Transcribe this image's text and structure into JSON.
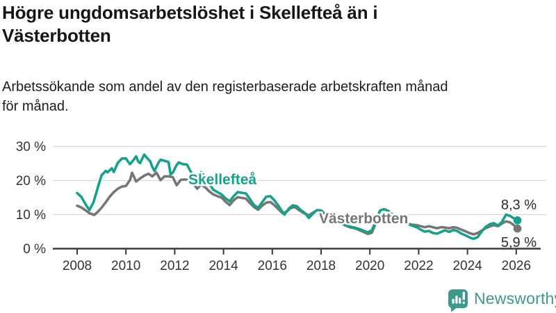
{
  "header": {
    "title_line1": "Högre ungdomsarbetslöshet i Skellefteå än i",
    "title_line2": "Västerbotten",
    "subtitle_line1": "Arbetssökande som andel av den registerbaserade arbetskraften månad",
    "subtitle_line2": "för månad."
  },
  "branding": {
    "name": "Newsworthy",
    "logo_icon": "bar-chart-exclamation-speech-bubble"
  },
  "colors": {
    "skelleftea": "#16a18b",
    "vasterbotten": "#767676",
    "axis": "#3b3b3b",
    "grid": "#dadada",
    "tick_label": "#333333",
    "value_label": "#2b2b2b",
    "brand": "#3e998b",
    "halo": "#ffffff"
  },
  "chart_data": {
    "type": "line",
    "title": "",
    "xlabel": "",
    "ylabel": "",
    "grid": true,
    "legend": "inline-labels",
    "ylim": [
      0,
      30
    ],
    "xlim": [
      2007,
      2026.9
    ],
    "y_tick_values": [
      0,
      10,
      20,
      30
    ],
    "y_tick_labels": [
      "0 %",
      "10 %",
      "20 %",
      "30 %"
    ],
    "x_tick_values": [
      2008,
      2010,
      2012,
      2014,
      2016,
      2018,
      2020,
      2022,
      2024,
      2026
    ],
    "x_tick_labels": [
      "2008",
      "2010",
      "2012",
      "2014",
      "2016",
      "2018",
      "2020",
      "2022",
      "2024",
      "2026"
    ],
    "series": [
      {
        "name": "Skellefteå",
        "color_key": "skelleftea",
        "end_label": "8,3 %",
        "end_value": 8.3,
        "points": [
          [
            2008.0,
            16.3
          ],
          [
            2008.17,
            15.2
          ],
          [
            2008.33,
            13.2
          ],
          [
            2008.5,
            11.3
          ],
          [
            2008.67,
            13.6
          ],
          [
            2008.83,
            17.5
          ],
          [
            2009.0,
            21.5
          ],
          [
            2009.17,
            22.8
          ],
          [
            2009.25,
            22.4
          ],
          [
            2009.42,
            23.6
          ],
          [
            2009.5,
            22.5
          ],
          [
            2009.67,
            25.2
          ],
          [
            2009.83,
            26.4
          ],
          [
            2010.0,
            26.5
          ],
          [
            2010.08,
            25.6
          ],
          [
            2010.17,
            24.8
          ],
          [
            2010.33,
            26.2
          ],
          [
            2010.42,
            27.1
          ],
          [
            2010.5,
            25.6
          ],
          [
            2010.58,
            25.1
          ],
          [
            2010.75,
            27.6
          ],
          [
            2010.83,
            26.9
          ],
          [
            2011.0,
            25.6
          ],
          [
            2011.08,
            24.0
          ],
          [
            2011.17,
            22.8
          ],
          [
            2011.33,
            25.2
          ],
          [
            2011.42,
            26.1
          ],
          [
            2011.58,
            25.8
          ],
          [
            2011.75,
            25.4
          ],
          [
            2011.83,
            21.8
          ],
          [
            2011.92,
            22.3
          ],
          [
            2012.08,
            24.6
          ],
          [
            2012.17,
            25.3
          ],
          [
            2012.33,
            24.8
          ],
          [
            2012.5,
            24.7
          ],
          [
            2012.67,
            22.4
          ],
          [
            2012.83,
            19.9
          ],
          [
            2012.92,
            21.0
          ],
          [
            2013.08,
            22.4
          ],
          [
            2013.25,
            21.0
          ],
          [
            2013.42,
            19.0
          ],
          [
            2013.58,
            17.3
          ],
          [
            2013.75,
            16.6
          ],
          [
            2013.92,
            15.9
          ],
          [
            2014.08,
            14.8
          ],
          [
            2014.25,
            13.9
          ],
          [
            2014.42,
            15.4
          ],
          [
            2014.58,
            16.6
          ],
          [
            2014.75,
            16.4
          ],
          [
            2014.92,
            16.2
          ],
          [
            2015.08,
            14.6
          ],
          [
            2015.25,
            12.8
          ],
          [
            2015.42,
            12.0
          ],
          [
            2015.58,
            13.6
          ],
          [
            2015.75,
            15.2
          ],
          [
            2015.92,
            15.4
          ],
          [
            2016.08,
            14.2
          ],
          [
            2016.25,
            12.6
          ],
          [
            2016.42,
            10.8
          ],
          [
            2016.5,
            10.0
          ],
          [
            2016.67,
            11.7
          ],
          [
            2016.83,
            12.7
          ],
          [
            2017.0,
            12.5
          ],
          [
            2017.17,
            11.3
          ],
          [
            2017.33,
            10.5
          ],
          [
            2017.5,
            9.0
          ],
          [
            2017.67,
            10.3
          ],
          [
            2017.83,
            11.3
          ],
          [
            2018.0,
            11.2
          ],
          [
            2018.17,
            10.2
          ],
          [
            2018.33,
            9.2
          ],
          [
            2018.58,
            8.5
          ],
          [
            2018.83,
            7.6
          ],
          [
            2019.0,
            6.9
          ],
          [
            2019.17,
            6.5
          ],
          [
            2019.42,
            6.1
          ],
          [
            2019.67,
            5.5
          ],
          [
            2019.92,
            4.8
          ],
          [
            2020.08,
            5.4
          ],
          [
            2020.25,
            8.2
          ],
          [
            2020.42,
            11.2
          ],
          [
            2020.58,
            11.6
          ],
          [
            2020.75,
            11.1
          ],
          [
            2020.92,
            10.0
          ],
          [
            2021.08,
            9.0
          ],
          [
            2021.25,
            8.3
          ],
          [
            2021.5,
            7.4
          ],
          [
            2021.75,
            6.7
          ],
          [
            2021.92,
            6.3
          ],
          [
            2022.08,
            5.6
          ],
          [
            2022.25,
            5.0
          ],
          [
            2022.42,
            5.2
          ],
          [
            2022.58,
            4.6
          ],
          [
            2022.75,
            4.4
          ],
          [
            2022.92,
            4.9
          ],
          [
            2023.08,
            5.4
          ],
          [
            2023.25,
            4.9
          ],
          [
            2023.42,
            5.5
          ],
          [
            2023.58,
            5.2
          ],
          [
            2023.75,
            4.4
          ],
          [
            2023.92,
            3.9
          ],
          [
            2024.08,
            3.3
          ],
          [
            2024.25,
            2.9
          ],
          [
            2024.42,
            3.4
          ],
          [
            2024.58,
            5.0
          ],
          [
            2024.75,
            6.4
          ],
          [
            2024.92,
            7.2
          ],
          [
            2025.08,
            7.5
          ],
          [
            2025.25,
            6.8
          ],
          [
            2025.42,
            7.9
          ],
          [
            2025.58,
            10.0
          ],
          [
            2025.75,
            9.6
          ],
          [
            2025.92,
            8.8
          ],
          [
            2026.05,
            8.3
          ]
        ]
      },
      {
        "name": "Västerbotten",
        "color_key": "vasterbotten",
        "end_label": "5,9 %",
        "end_value": 5.9,
        "points": [
          [
            2008.0,
            12.6
          ],
          [
            2008.17,
            12.1
          ],
          [
            2008.33,
            11.3
          ],
          [
            2008.5,
            10.4
          ],
          [
            2008.7,
            9.9
          ],
          [
            2008.83,
            10.7
          ],
          [
            2009.0,
            12.0
          ],
          [
            2009.17,
            13.6
          ],
          [
            2009.33,
            15.2
          ],
          [
            2009.5,
            16.6
          ],
          [
            2009.67,
            17.6
          ],
          [
            2009.83,
            18.2
          ],
          [
            2010.0,
            18.4
          ],
          [
            2010.17,
            20.2
          ],
          [
            2010.25,
            22.3
          ],
          [
            2010.42,
            19.7
          ],
          [
            2010.58,
            20.6
          ],
          [
            2010.75,
            21.4
          ],
          [
            2010.92,
            22.0
          ],
          [
            2011.08,
            21.2
          ],
          [
            2011.25,
            22.3
          ],
          [
            2011.42,
            20.1
          ],
          [
            2011.58,
            21.2
          ],
          [
            2011.75,
            21.2
          ],
          [
            2011.92,
            21.0
          ],
          [
            2012.08,
            18.6
          ],
          [
            2012.25,
            20.2
          ],
          [
            2012.42,
            20.3
          ],
          [
            2012.58,
            20.1
          ],
          [
            2012.75,
            19.2
          ],
          [
            2012.92,
            17.6
          ],
          [
            2013.08,
            18.8
          ],
          [
            2013.25,
            18.0
          ],
          [
            2013.42,
            16.8
          ],
          [
            2013.58,
            15.9
          ],
          [
            2013.75,
            15.4
          ],
          [
            2013.92,
            15.0
          ],
          [
            2014.08,
            13.8
          ],
          [
            2014.25,
            12.8
          ],
          [
            2014.42,
            14.2
          ],
          [
            2014.58,
            15.1
          ],
          [
            2014.75,
            14.9
          ],
          [
            2014.92,
            14.7
          ],
          [
            2015.08,
            13.4
          ],
          [
            2015.25,
            12.2
          ],
          [
            2015.42,
            11.4
          ],
          [
            2015.58,
            12.6
          ],
          [
            2015.75,
            13.5
          ],
          [
            2015.92,
            13.7
          ],
          [
            2016.08,
            12.8
          ],
          [
            2016.25,
            11.6
          ],
          [
            2016.42,
            10.4
          ],
          [
            2016.58,
            10.8
          ],
          [
            2016.75,
            11.9
          ],
          [
            2016.92,
            12.2
          ],
          [
            2017.08,
            11.4
          ],
          [
            2017.25,
            10.6
          ],
          [
            2017.5,
            9.8
          ],
          [
            2017.67,
            10.6
          ],
          [
            2017.83,
            11.2
          ],
          [
            2018.0,
            11.0
          ],
          [
            2018.17,
            10.1
          ],
          [
            2018.33,
            9.3
          ],
          [
            2018.58,
            8.4
          ],
          [
            2018.83,
            7.4
          ],
          [
            2019.0,
            6.8
          ],
          [
            2019.17,
            6.3
          ],
          [
            2019.42,
            5.9
          ],
          [
            2019.67,
            5.1
          ],
          [
            2019.92,
            4.3
          ],
          [
            2020.08,
            4.7
          ],
          [
            2020.25,
            7.6
          ],
          [
            2020.42,
            9.9
          ],
          [
            2020.58,
            10.3
          ],
          [
            2020.75,
            9.9
          ],
          [
            2020.92,
            9.2
          ],
          [
            2021.08,
            8.5
          ],
          [
            2021.25,
            8.0
          ],
          [
            2021.5,
            7.4
          ],
          [
            2021.75,
            7.0
          ],
          [
            2021.92,
            6.9
          ],
          [
            2022.08,
            6.6
          ],
          [
            2022.25,
            6.3
          ],
          [
            2022.42,
            6.6
          ],
          [
            2022.58,
            6.3
          ],
          [
            2022.75,
            6.0
          ],
          [
            2022.92,
            6.3
          ],
          [
            2023.08,
            6.2
          ],
          [
            2023.25,
            6.0
          ],
          [
            2023.42,
            6.3
          ],
          [
            2023.58,
            6.1
          ],
          [
            2023.75,
            5.6
          ],
          [
            2023.92,
            5.1
          ],
          [
            2024.08,
            4.6
          ],
          [
            2024.25,
            4.2
          ],
          [
            2024.42,
            4.6
          ],
          [
            2024.58,
            5.3
          ],
          [
            2024.75,
            6.0
          ],
          [
            2024.92,
            6.5
          ],
          [
            2025.08,
            6.9
          ],
          [
            2025.25,
            6.6
          ],
          [
            2025.42,
            7.4
          ],
          [
            2025.58,
            8.0
          ],
          [
            2025.75,
            7.7
          ],
          [
            2025.92,
            6.8
          ],
          [
            2026.05,
            5.9
          ]
        ]
      }
    ]
  }
}
